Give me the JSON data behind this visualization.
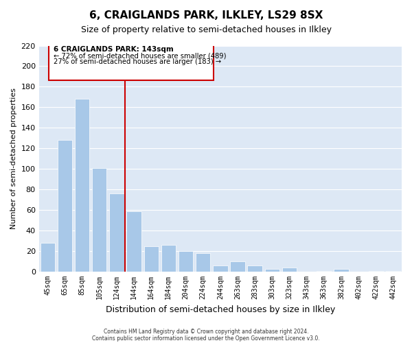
{
  "title": "6, CRAIGLANDS PARK, ILKLEY, LS29 8SX",
  "subtitle": "Size of property relative to semi-detached houses in Ilkley",
  "xlabel": "Distribution of semi-detached houses by size in Ilkley",
  "ylabel": "Number of semi-detached properties",
  "bar_labels": [
    "45sqm",
    "65sqm",
    "85sqm",
    "105sqm",
    "124sqm",
    "144sqm",
    "164sqm",
    "184sqm",
    "204sqm",
    "224sqm",
    "244sqm",
    "263sqm",
    "283sqm",
    "303sqm",
    "323sqm",
    "343sqm",
    "363sqm",
    "382sqm",
    "402sqm",
    "422sqm",
    "442sqm"
  ],
  "bar_values": [
    28,
    128,
    168,
    101,
    76,
    59,
    25,
    26,
    20,
    18,
    6,
    10,
    6,
    3,
    4,
    0,
    1,
    3,
    0,
    1,
    1
  ],
  "highlight_line_index": 5,
  "bar_color": "#a8c8e8",
  "highlight_line_color": "#cc0000",
  "box_line_color": "#cc0000",
  "ylim": [
    0,
    220
  ],
  "yticks": [
    0,
    20,
    40,
    60,
    80,
    100,
    120,
    140,
    160,
    180,
    200,
    220
  ],
  "annotation_title": "6 CRAIGLANDS PARK: 143sqm",
  "annotation_line1": "← 72% of semi-detached houses are smaller (489)",
  "annotation_line2": "27% of semi-detached houses are larger (183) →",
  "footer1": "Contains HM Land Registry data © Crown copyright and database right 2024.",
  "footer2": "Contains public sector information licensed under the Open Government Licence v3.0.",
  "bg_color": "#dde8f5"
}
